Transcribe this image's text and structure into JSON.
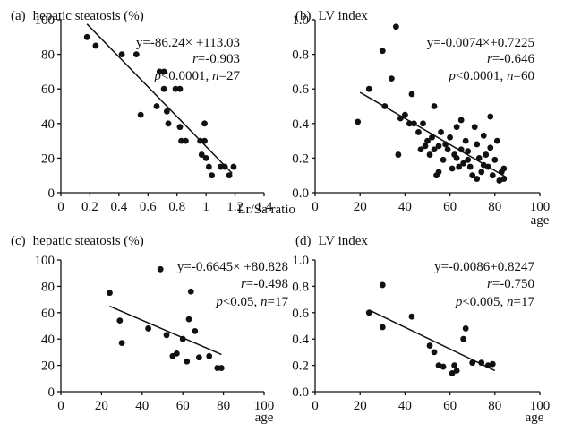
{
  "chart_data": [
    {
      "id": "a",
      "type": "scatter",
      "panel_label": "(a)",
      "title": "hepatic steatosis (%)",
      "xlabel": "Lr/Sa ratio",
      "ylabel": "",
      "xlim": [
        0,
        1.4
      ],
      "ylim": [
        0,
        100
      ],
      "xticks": [
        "0",
        "0.2",
        "0.4",
        "0.6",
        "0.8",
        "1",
        "1.2",
        "1.4"
      ],
      "yticks": [
        "0",
        "20",
        "40",
        "60",
        "80",
        "100"
      ],
      "grid": false,
      "stats": {
        "equation": "y=-86.24× +113.03",
        "r": "=-0.903",
        "p": "<0.0001, ",
        "n": "=27"
      },
      "fit": {
        "x1": 0.18,
        "y1": 97.5,
        "x2": 1.18,
        "y2": 11.2
      },
      "points": [
        [
          0.18,
          90
        ],
        [
          0.24,
          85
        ],
        [
          0.42,
          80
        ],
        [
          0.52,
          80
        ],
        [
          0.55,
          45
        ],
        [
          0.66,
          50
        ],
        [
          0.68,
          70
        ],
        [
          0.71,
          70
        ],
        [
          0.71,
          60
        ],
        [
          0.73,
          47
        ],
        [
          0.74,
          40
        ],
        [
          0.79,
          60
        ],
        [
          0.82,
          60
        ],
        [
          0.82,
          38
        ],
        [
          0.83,
          30
        ],
        [
          0.86,
          30
        ],
        [
          0.96,
          30
        ],
        [
          0.99,
          30
        ],
        [
          0.99,
          40
        ],
        [
          0.97,
          22
        ],
        [
          1.0,
          20
        ],
        [
          1.02,
          15
        ],
        [
          1.04,
          10
        ],
        [
          1.1,
          15
        ],
        [
          1.13,
          15
        ],
        [
          1.16,
          10
        ],
        [
          1.19,
          15
        ]
      ]
    },
    {
      "id": "b",
      "type": "scatter",
      "panel_label": "(b)",
      "title": "LV index",
      "xlabel": "age",
      "ylabel": "",
      "xlim": [
        0,
        100
      ],
      "ylim": [
        0,
        1.0
      ],
      "xticks": [
        "0",
        "20",
        "40",
        "60",
        "80",
        "100"
      ],
      "yticks": [
        "0.0",
        "0.2",
        "0.4",
        "0.6",
        "0.8",
        "1.0"
      ],
      "grid": false,
      "stats": {
        "equation": "y=-0.0074×+0.7225",
        "r": "=-0.646",
        "p": "<0.0001, ",
        "n": "=60"
      },
      "fit": {
        "x1": 20,
        "y1": 0.58,
        "x2": 85,
        "y2": 0.09
      },
      "points": [
        [
          19,
          0.41
        ],
        [
          24,
          0.6
        ],
        [
          30,
          0.82
        ],
        [
          31,
          0.5
        ],
        [
          34,
          0.66
        ],
        [
          36,
          0.96
        ],
        [
          37,
          0.22
        ],
        [
          38,
          0.43
        ],
        [
          40,
          0.45
        ],
        [
          42,
          0.4
        ],
        [
          43,
          0.57
        ],
        [
          44,
          0.4
        ],
        [
          46,
          0.35
        ],
        [
          47,
          0.25
        ],
        [
          48,
          0.4
        ],
        [
          49,
          0.27
        ],
        [
          50,
          0.3
        ],
        [
          51,
          0.22
        ],
        [
          52,
          0.32
        ],
        [
          53,
          0.5
        ],
        [
          53,
          0.25
        ],
        [
          54,
          0.1
        ],
        [
          55,
          0.27
        ],
        [
          55,
          0.12
        ],
        [
          56,
          0.35
        ],
        [
          57,
          0.19
        ],
        [
          58,
          0.28
        ],
        [
          59,
          0.25
        ],
        [
          60,
          0.32
        ],
        [
          61,
          0.14
        ],
        [
          62,
          0.22
        ],
        [
          63,
          0.38
        ],
        [
          63,
          0.2
        ],
        [
          64,
          0.15
        ],
        [
          65,
          0.25
        ],
        [
          65,
          0.42
        ],
        [
          66,
          0.17
        ],
        [
          67,
          0.3
        ],
        [
          68,
          0.19
        ],
        [
          68,
          0.24
        ],
        [
          69,
          0.15
        ],
        [
          70,
          0.1
        ],
        [
          71,
          0.38
        ],
        [
          72,
          0.08
        ],
        [
          72,
          0.28
        ],
        [
          73,
          0.2
        ],
        [
          74,
          0.12
        ],
        [
          75,
          0.33
        ],
        [
          75,
          0.16
        ],
        [
          76,
          0.22
        ],
        [
          77,
          0.15
        ],
        [
          78,
          0.44
        ],
        [
          78,
          0.26
        ],
        [
          79,
          0.1
        ],
        [
          80,
          0.19
        ],
        [
          81,
          0.3
        ],
        [
          82,
          0.07
        ],
        [
          83,
          0.12
        ],
        [
          84,
          0.08
        ],
        [
          84,
          0.14
        ]
      ]
    },
    {
      "id": "c",
      "type": "scatter",
      "panel_label": "(c)",
      "title": "hepatic steatosis (%)",
      "xlabel": "age",
      "ylabel": "",
      "xlim": [
        0,
        100
      ],
      "ylim": [
        0,
        100
      ],
      "xticks": [
        "0",
        "20",
        "40",
        "60",
        "80",
        "100"
      ],
      "yticks": [
        "0",
        "20",
        "40",
        "60",
        "80",
        "100"
      ],
      "grid": false,
      "stats": {
        "equation": "y=-0.6645× +80.828",
        "r": "=-0.498",
        "p": "<0.05, ",
        "n": "=17"
      },
      "fit": {
        "x1": 24,
        "y1": 64.9,
        "x2": 79,
        "y2": 28.3
      },
      "points": [
        [
          24,
          75
        ],
        [
          29,
          54
        ],
        [
          30,
          37
        ],
        [
          43,
          48
        ],
        [
          49,
          93
        ],
        [
          52,
          43
        ],
        [
          55,
          27
        ],
        [
          57,
          29
        ],
        [
          60,
          40
        ],
        [
          62,
          23
        ],
        [
          63,
          55
        ],
        [
          64,
          76
        ],
        [
          66,
          46
        ],
        [
          68,
          26
        ],
        [
          73,
          27
        ],
        [
          77,
          18
        ],
        [
          79,
          18
        ]
      ]
    },
    {
      "id": "d",
      "type": "scatter",
      "panel_label": "(d)",
      "title": "LV index",
      "xlabel": "age",
      "ylabel": "",
      "xlim": [
        0,
        100
      ],
      "ylim": [
        0,
        1.0
      ],
      "xticks": [
        "0",
        "20",
        "40",
        "60",
        "80",
        "100"
      ],
      "yticks": [
        "0.0",
        "0.2",
        "0.4",
        "0.6",
        "0.8",
        "1.0"
      ],
      "grid": false,
      "stats": {
        "equation": "y=-0.0086+0.8247",
        "r": "=-0.750",
        "p": "<0.005, ",
        "n": "=17"
      },
      "fit": {
        "x1": 24,
        "y1": 0.62,
        "x2": 80,
        "y2": 0.16
      },
      "points": [
        [
          24,
          0.6
        ],
        [
          30,
          0.81
        ],
        [
          30,
          0.49
        ],
        [
          43,
          0.57
        ],
        [
          51,
          0.35
        ],
        [
          53,
          0.3
        ],
        [
          55,
          0.2
        ],
        [
          57,
          0.19
        ],
        [
          61,
          0.14
        ],
        [
          62,
          0.2
        ],
        [
          63,
          0.16
        ],
        [
          66,
          0.4
        ],
        [
          67,
          0.48
        ],
        [
          70,
          0.22
        ],
        [
          74,
          0.22
        ],
        [
          77,
          0.2
        ],
        [
          79,
          0.21
        ]
      ]
    }
  ]
}
